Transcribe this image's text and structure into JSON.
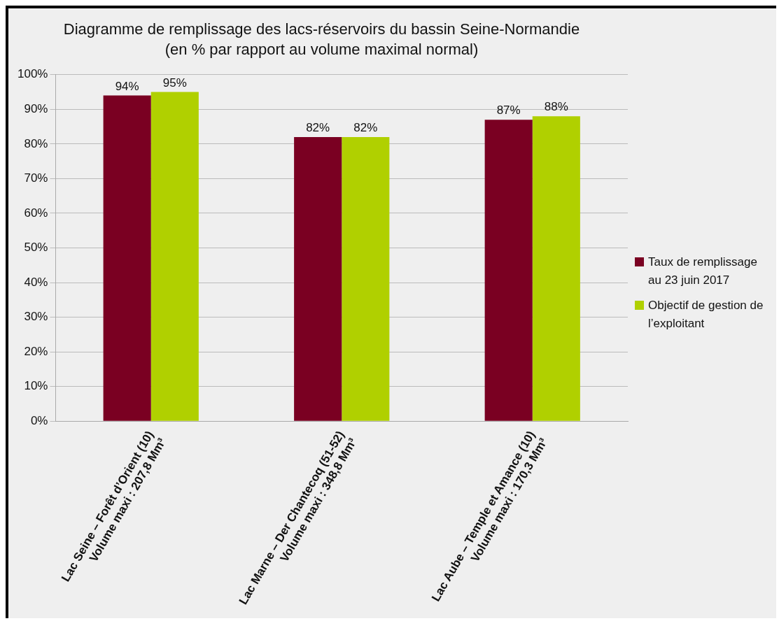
{
  "chart_data": {
    "type": "bar",
    "title": "Diagramme de remplissage des lacs-réservoirs du bassin Seine-Normandie",
    "subtitle": "(en % par rapport au volume maximal normal)",
    "categories": [
      "Lac Seine – Forêt d’Orient (10)\nVolume maxi : 207,8 Mm³",
      "Lac Marne – Der Chantecoq (51-52)\nVolume maxi : 348,8 Mm³",
      "Lac Aube – Temple et Amance (10)\nVolume maxi : 170,3 Mm³"
    ],
    "series": [
      {
        "name": "Taux de remplissage au 23 juin 2017",
        "color": "#7a0022",
        "values": [
          94,
          82,
          87
        ],
        "value_labels": [
          "94%",
          "82%",
          "87%"
        ]
      },
      {
        "name": "Objectif de gestion de l’exploitant",
        "color": "#b0d000",
        "values": [
          95,
          82,
          88
        ],
        "value_labels": [
          "95%",
          "82%",
          "88%"
        ]
      }
    ],
    "ylim": [
      0,
      100
    ],
    "yticks": [
      {
        "value": 0,
        "label": "0%"
      },
      {
        "value": 10,
        "label": "10%"
      },
      {
        "value": 20,
        "label": "20%"
      },
      {
        "value": 30,
        "label": "30%"
      },
      {
        "value": 40,
        "label": "40%"
      },
      {
        "value": 50,
        "label": "50%"
      },
      {
        "value": 60,
        "label": "60%"
      },
      {
        "value": 70,
        "label": "70%"
      },
      {
        "value": 80,
        "label": "80%"
      },
      {
        "value": 90,
        "label": "90%"
      },
      {
        "value": 100,
        "label": "100%"
      }
    ],
    "grid": "y",
    "legend": "right"
  }
}
